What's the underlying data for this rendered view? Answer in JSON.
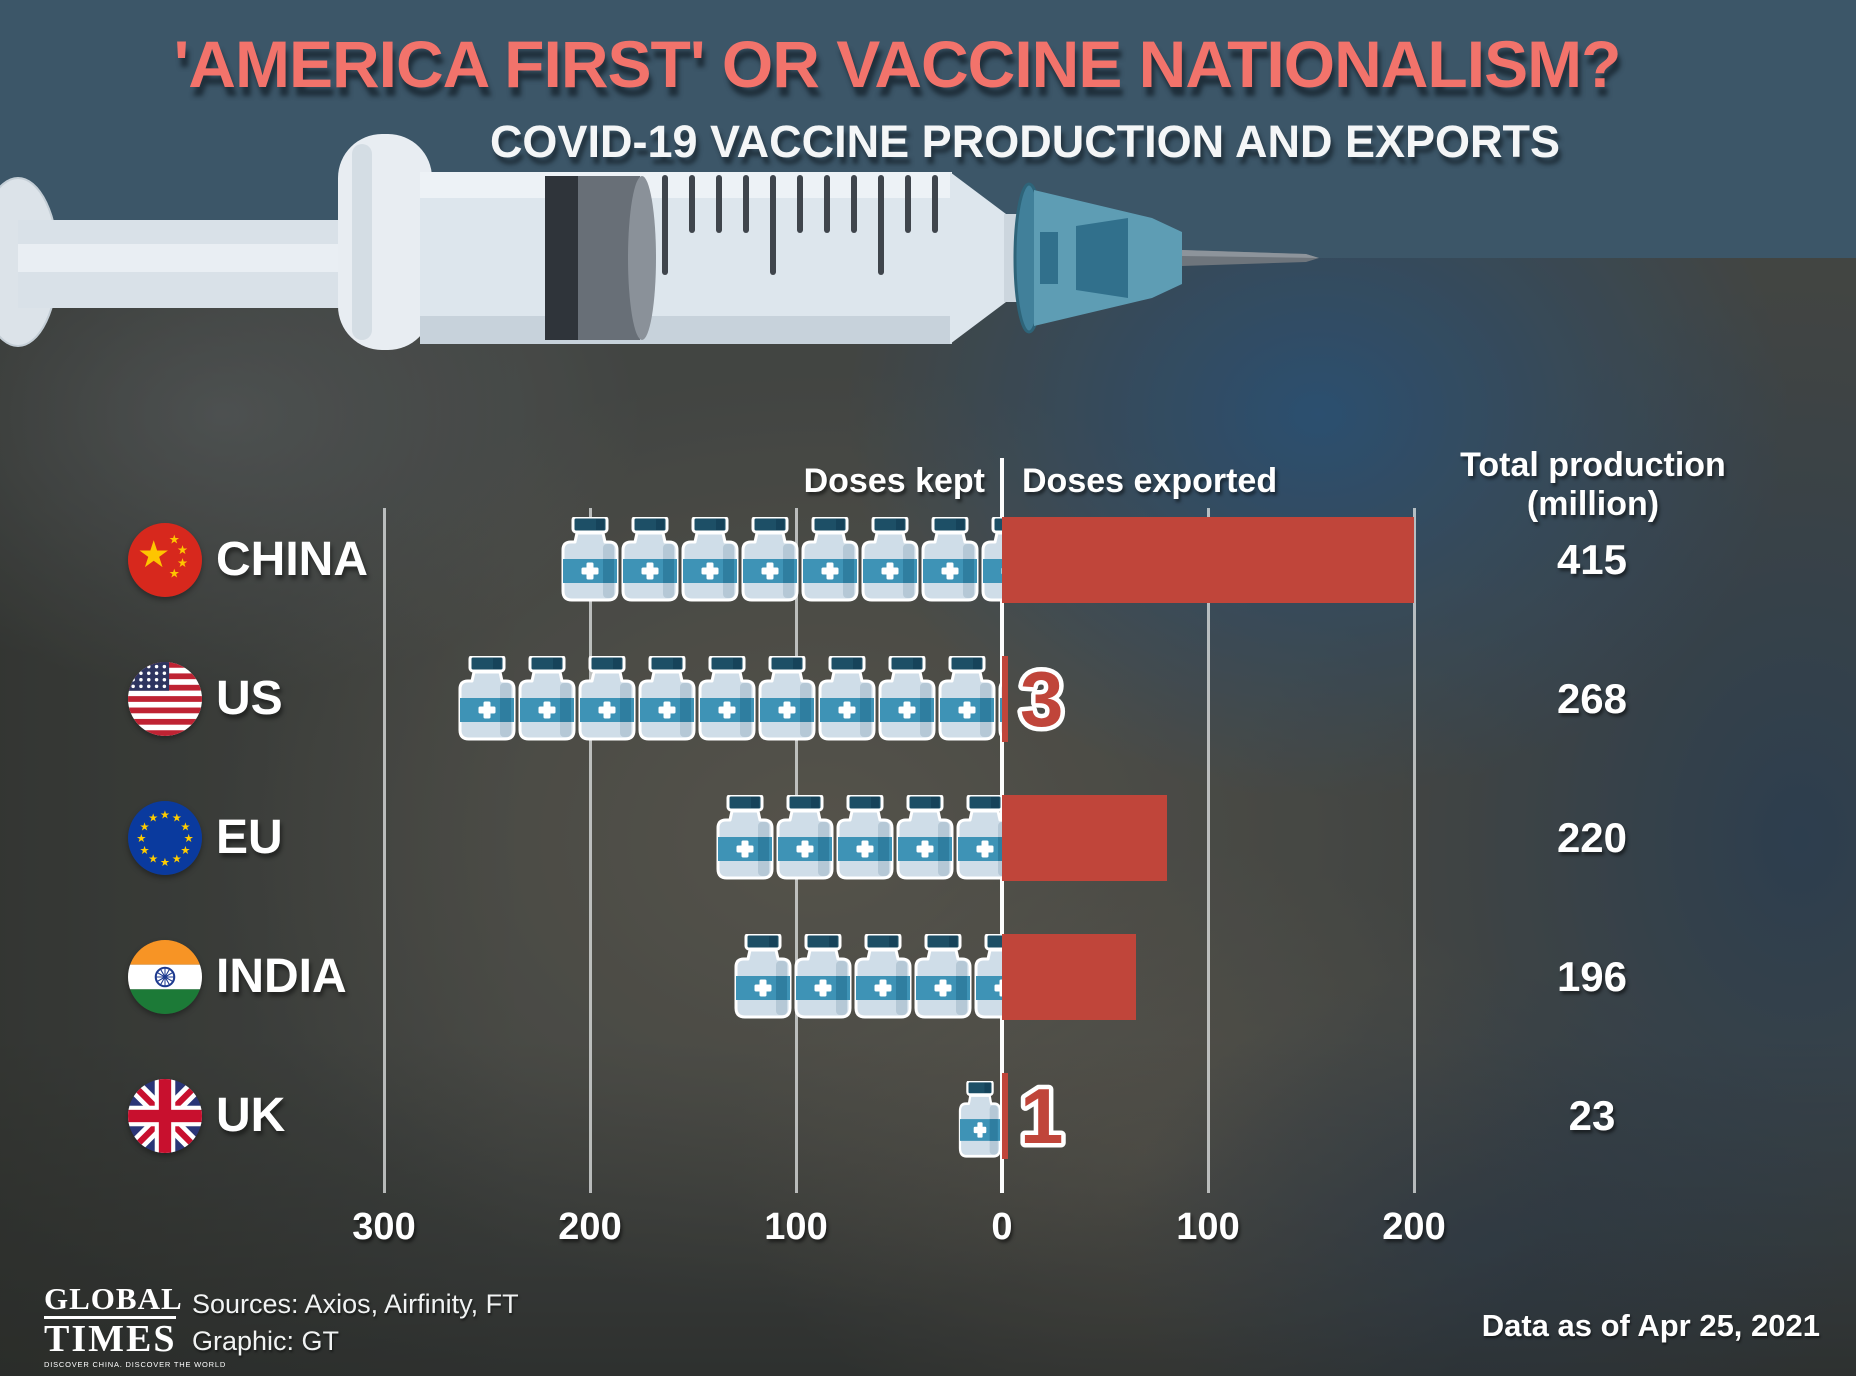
{
  "title": "'AMERICA FIRST' OR VACCINE NATIONALISM?",
  "subtitle": "COVID-19 VACCINE PRODUCTION AND EXPORTS",
  "columns": {
    "kept_header": "Doses kept",
    "exported_header": "Doses exported",
    "total_header_line1": "Total production",
    "total_header_line2": "(million)"
  },
  "chart_data": {
    "type": "bar",
    "variant": "horizontal-diverging-pictogram",
    "categories": [
      "CHINA",
      "US",
      "EU",
      "INDIA",
      "UK"
    ],
    "series": [
      {
        "name": "Doses kept",
        "values": [
          215,
          265,
          140,
          131,
          22
        ]
      },
      {
        "name": "Doses exported",
        "values": [
          200,
          3,
          80,
          65,
          1
        ]
      }
    ],
    "totals_column": {
      "header": "Total production (million)",
      "values": [
        "415",
        "268",
        "220",
        "196",
        "23"
      ]
    },
    "bar_value_labels": [
      "",
      "3",
      "",
      "",
      "1"
    ],
    "x_axis": {
      "tick_values": [
        -300,
        -200,
        -100,
        0,
        100,
        200
      ],
      "tick_labels": [
        "300",
        "200",
        "100",
        "0",
        "100",
        "200"
      ],
      "unit": "million doses",
      "zero_divider": true
    },
    "legend_position": "top-of-columns",
    "flags": [
      "china-flag-icon",
      "us-flag-icon",
      "eu-flag-icon",
      "india-flag-icon",
      "uk-flag-icon"
    ]
  },
  "footer": {
    "logo_line1": "GLOBAL",
    "logo_line2": "TIMES",
    "logo_tagline": "DISCOVER CHINA. DISCOVER THE WORLD",
    "sources": "Sources: Axios, Airfinity, FT",
    "credit": "Graphic: GT",
    "data_note": "Data as of Apr 25, 2021"
  },
  "colors": {
    "accent_red": "#c0453a",
    "slate_background": "#3c5668",
    "title_salmon": "#f2736b",
    "vial_band_teal": "#3e93b6",
    "vial_cap_teal": "#1d4f66",
    "grid_white": "#e1e4e4"
  }
}
